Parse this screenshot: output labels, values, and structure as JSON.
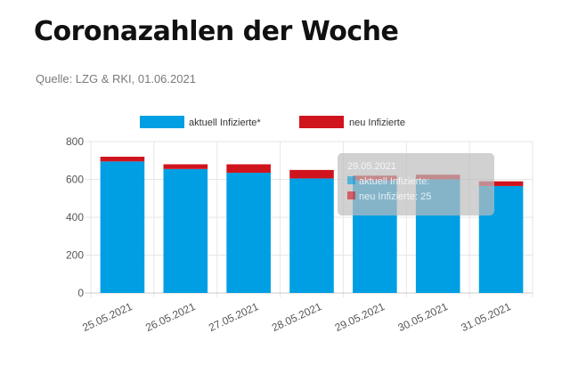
{
  "header": {
    "title": "Coronazahlen der Woche",
    "source": "Quelle: LZG & RKI, 01.06.2021"
  },
  "colors": {
    "active": "#009fe3",
    "new": "#d0141e",
    "grid": "#e6e6e6",
    "tooltip_bg": "#bdbdbd"
  },
  "chart_data": {
    "type": "bar",
    "stacked": true,
    "categories": [
      "25.05.2021",
      "26.05.2021",
      "27.05.2021",
      "28.05.2021",
      "29.05.2021",
      "30.05.2021",
      "31.05.2021"
    ],
    "series": [
      {
        "name": "aktuell Infizierte*",
        "values": [
          695,
          655,
          635,
          605,
          595,
          600,
          565
        ]
      },
      {
        "name": "neu Infizierte",
        "values": [
          25,
          25,
          45,
          45,
          25,
          25,
          25
        ]
      }
    ],
    "ylim": [
      0,
      800
    ],
    "yticks": [
      0,
      200,
      400,
      600,
      800
    ],
    "grid": true,
    "legend": "top-center",
    "tooltip": {
      "title": "29.05.2021",
      "lines": [
        "aktuell Infizierte: ",
        "neu Infizierte: 25"
      ]
    }
  }
}
